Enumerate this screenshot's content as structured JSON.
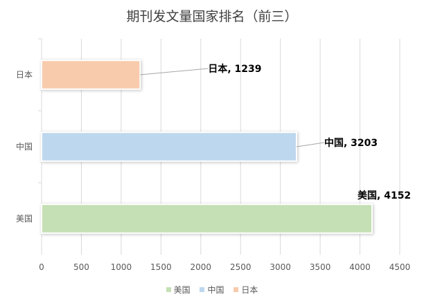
{
  "chart_data": {
    "type": "bar",
    "orientation": "horizontal",
    "title": "期刊发文量国家排名（前三）",
    "categories": [
      "日本",
      "中国",
      "美国"
    ],
    "values": [
      1239,
      3203,
      4152
    ],
    "data_labels": [
      "日本, 1239",
      "中国, 3203",
      "美国, 4152"
    ],
    "colors": [
      "#f8cbad",
      "#bdd7ee",
      "#c5e0b4"
    ],
    "xlim": [
      0,
      4500
    ],
    "xticks": [
      0,
      500,
      1000,
      1500,
      2000,
      2500,
      3000,
      3500,
      4000,
      4500
    ],
    "grid": true,
    "legend": {
      "position": "bottom",
      "items": [
        {
          "label": "美国",
          "color": "#c5e0b4"
        },
        {
          "label": "中国",
          "color": "#bdd7ee"
        },
        {
          "label": "日本",
          "color": "#f8cbad"
        }
      ]
    }
  }
}
